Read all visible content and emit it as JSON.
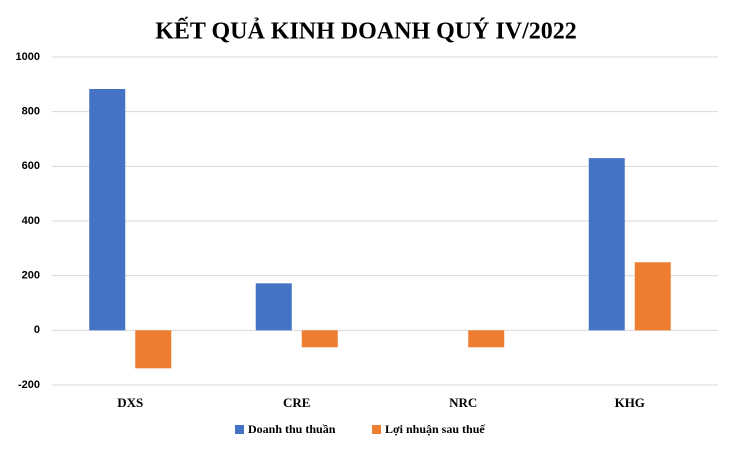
{
  "chart_data": {
    "type": "bar",
    "title": "KẾT QUẢ KINH DOANH QUÝ IV/2022",
    "categories": [
      "DXS",
      "CRE",
      "NRC",
      "KHG"
    ],
    "series": [
      {
        "name": "Doanh thu thuần",
        "color": "#4472c4",
        "values": [
          883,
          172,
          0,
          630
        ]
      },
      {
        "name": "Lợi nhuận sau thuế",
        "color": "#ed7d31",
        "values": [
          -139,
          -62,
          -62,
          249
        ]
      }
    ],
    "ylim": [
      -200,
      1000
    ],
    "yticks": [
      -200,
      0,
      200,
      400,
      600,
      800,
      1000
    ],
    "grid": true,
    "legend": "bottom"
  }
}
